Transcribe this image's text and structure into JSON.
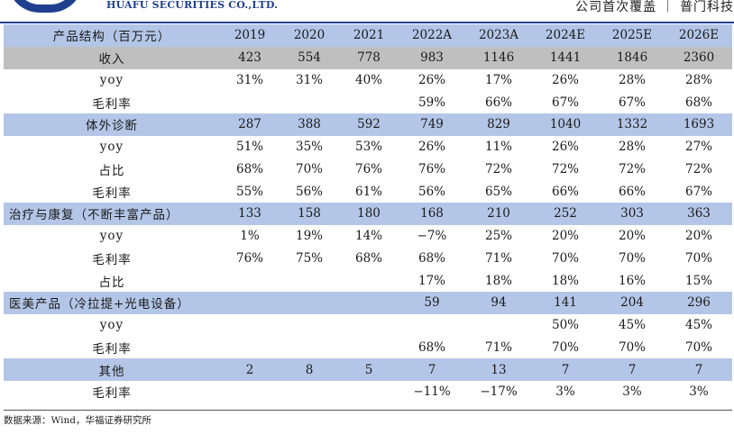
{
  "header": {
    "company": "HUAFU SECURITIES CO.,LTD.",
    "report_type": "公司首次覆盖 ｜ 普门科技"
  },
  "table": {
    "columns": [
      "产品结构（百万元）",
      "2019",
      "2020",
      "2021",
      "2022A",
      "2023A",
      "2024E",
      "2025E",
      "2026E"
    ],
    "rows": [
      {
        "type": "rev",
        "label": "收入",
        "values": [
          "423",
          "554",
          "778",
          "983",
          "1146",
          "1441",
          "1846",
          "2360"
        ]
      },
      {
        "type": "sub",
        "label": "yoy",
        "values": [
          "31%",
          "31%",
          "40%",
          "26%",
          "17%",
          "26%",
          "28%",
          "28%"
        ]
      },
      {
        "type": "sub",
        "label": "毛利率",
        "values": [
          "",
          "",
          "",
          "59%",
          "66%",
          "67%",
          "67%",
          "68%"
        ]
      },
      {
        "type": "seg",
        "label": "体外诊断",
        "values": [
          "287",
          "388",
          "592",
          "749",
          "829",
          "1040",
          "1332",
          "1693"
        ]
      },
      {
        "type": "sub",
        "label": "yoy",
        "values": [
          "51%",
          "35%",
          "53%",
          "26%",
          "11%",
          "26%",
          "28%",
          "27%"
        ]
      },
      {
        "type": "sub",
        "label": "占比",
        "values": [
          "68%",
          "70%",
          "76%",
          "76%",
          "72%",
          "72%",
          "72%",
          "72%"
        ]
      },
      {
        "type": "sub",
        "label": "毛利率",
        "values": [
          "55%",
          "56%",
          "61%",
          "56%",
          "65%",
          "66%",
          "66%",
          "67%"
        ]
      },
      {
        "type": "seg-left",
        "label": "治疗与康复（不断丰富产品）",
        "values": [
          "133",
          "158",
          "180",
          "168",
          "210",
          "252",
          "303",
          "363"
        ]
      },
      {
        "type": "sub",
        "label": "yoy",
        "values": [
          "1%",
          "19%",
          "14%",
          "−7%",
          "25%",
          "20%",
          "20%",
          "20%"
        ]
      },
      {
        "type": "sub",
        "label": "毛利率",
        "values": [
          "76%",
          "75%",
          "68%",
          "68%",
          "71%",
          "70%",
          "70%",
          "70%"
        ]
      },
      {
        "type": "sub",
        "label": "占比",
        "values": [
          "",
          "",
          "",
          "17%",
          "18%",
          "18%",
          "16%",
          "15%"
        ]
      },
      {
        "type": "seg-left",
        "label": "医美产品（冷拉提+光电设备）",
        "values": [
          "",
          "",
          "",
          "59",
          "94",
          "141",
          "204",
          "296"
        ]
      },
      {
        "type": "sub",
        "label": "yoy",
        "values": [
          "",
          "",
          "",
          "",
          "",
          "50%",
          "45%",
          "45%"
        ]
      },
      {
        "type": "sub",
        "label": "毛利率",
        "values": [
          "",
          "",
          "",
          "68%",
          "71%",
          "70%",
          "70%",
          "70%"
        ]
      },
      {
        "type": "seg",
        "label": "其他",
        "values": [
          "2",
          "8",
          "5",
          "7",
          "13",
          "7",
          "7",
          "7"
        ]
      },
      {
        "type": "sub",
        "label": "毛利率",
        "values": [
          "",
          "",
          "",
          "−11%",
          "−17%",
          "3%",
          "3%",
          "3%"
        ]
      }
    ]
  },
  "footer": {
    "source": "数据来源：Wind，华福证券研究所"
  }
}
